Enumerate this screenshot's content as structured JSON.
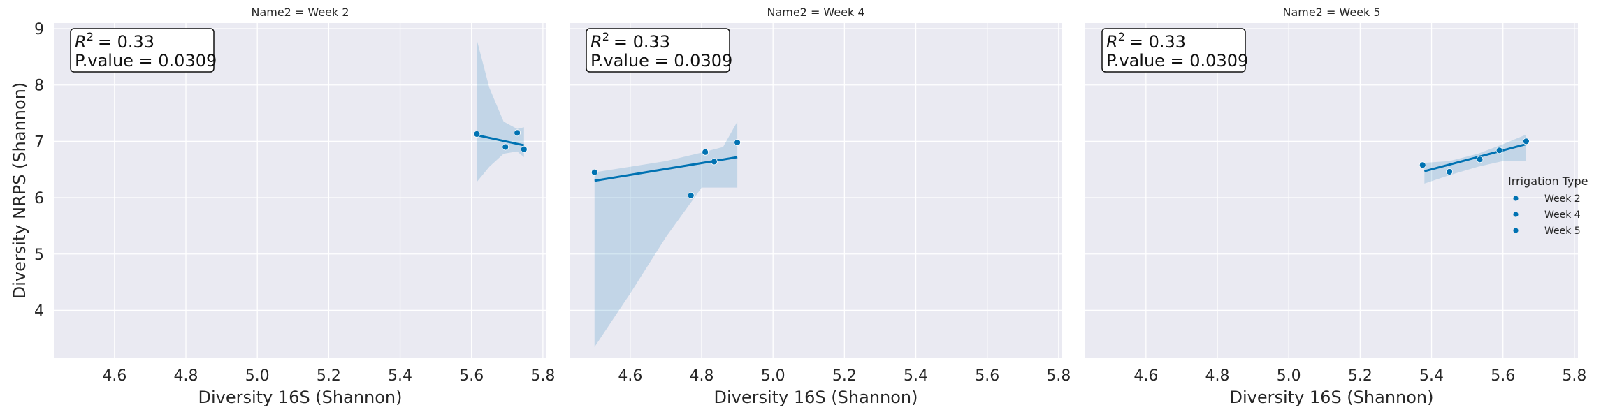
{
  "chart_data": [
    {
      "type": "scatter",
      "title": "Name2 = Week 2",
      "xlabel": "Diversity 16S (Shannon)",
      "ylabel": "Diversity NRPS (Shannon)",
      "xlim": [
        4.43,
        5.81
      ],
      "ylim": [
        3.15,
        9.1
      ],
      "xticks": [
        "4.6",
        "4.8",
        "5.0",
        "5.2",
        "5.4",
        "5.6",
        "5.8"
      ],
      "yticks": [
        "4",
        "5",
        "6",
        "7",
        "8",
        "9"
      ],
      "annotation": {
        "r2_value": "= 0.33",
        "p_value": "P.value = 0.0309"
      },
      "points": [
        {
          "x": 5.615,
          "y": 7.13
        },
        {
          "x": 5.695,
          "y": 6.9
        },
        {
          "x": 5.728,
          "y": 7.15
        },
        {
          "x": 5.747,
          "y": 6.86
        }
      ],
      "fit": {
        "x": [
          5.615,
          5.747
        ],
        "y": [
          7.11,
          6.93
        ]
      },
      "ci": {
        "x": [
          5.615,
          5.65,
          5.69,
          5.728,
          5.747
        ],
        "upper": [
          8.8,
          7.95,
          7.35,
          7.22,
          7.25
        ],
        "lower": [
          6.28,
          6.55,
          6.78,
          6.82,
          6.72
        ]
      },
      "grid": true
    },
    {
      "type": "scatter",
      "title": "Name2 = Week 4",
      "xlabel": "Diversity 16S (Shannon)",
      "ylabel": "",
      "xlim": [
        4.43,
        5.81
      ],
      "ylim": [
        3.15,
        9.1
      ],
      "xticks": [
        "4.6",
        "4.8",
        "5.0",
        "5.2",
        "5.4",
        "5.6",
        "5.8"
      ],
      "yticks": [
        "4",
        "5",
        "6",
        "7",
        "8",
        "9"
      ],
      "annotation": {
        "r2_value": "= 0.33",
        "p_value": "P.value = 0.0309"
      },
      "points": [
        {
          "x": 4.5,
          "y": 6.45
        },
        {
          "x": 4.77,
          "y": 6.04
        },
        {
          "x": 4.81,
          "y": 6.81
        },
        {
          "x": 4.835,
          "y": 6.64
        },
        {
          "x": 4.9,
          "y": 6.98
        }
      ],
      "fit": {
        "x": [
          4.5,
          4.9
        ],
        "y": [
          6.3,
          6.72
        ]
      },
      "ci": {
        "x": [
          4.5,
          4.6,
          4.7,
          4.8,
          4.86,
          4.9
        ],
        "upper": [
          6.45,
          6.55,
          6.65,
          6.8,
          6.9,
          7.35
        ],
        "lower": [
          3.35,
          4.3,
          5.3,
          6.18,
          6.18,
          6.18
        ]
      },
      "grid": true
    },
    {
      "type": "scatter",
      "title": "Name2 = Week 5",
      "xlabel": "Diversity 16S (Shannon)",
      "ylabel": "",
      "xlim": [
        4.43,
        5.81
      ],
      "ylim": [
        3.15,
        9.1
      ],
      "xticks": [
        "4.6",
        "4.8",
        "5.0",
        "5.2",
        "5.4",
        "5.6",
        "5.8"
      ],
      "yticks": [
        "4",
        "5",
        "6",
        "7",
        "8",
        "9"
      ],
      "annotation": {
        "r2_value": "= 0.33",
        "p_value": "P.value = 0.0309"
      },
      "points": [
        {
          "x": 5.375,
          "y": 6.58
        },
        {
          "x": 5.45,
          "y": 6.46
        },
        {
          "x": 5.535,
          "y": 6.68
        },
        {
          "x": 5.59,
          "y": 6.84
        },
        {
          "x": 5.665,
          "y": 7.0
        }
      ],
      "fit": {
        "x": [
          5.38,
          5.665
        ],
        "y": [
          6.47,
          6.95
        ]
      },
      "ci": {
        "x": [
          5.38,
          5.45,
          5.53,
          5.6,
          5.665
        ],
        "upper": [
          6.62,
          6.65,
          6.78,
          6.95,
          7.12
        ],
        "lower": [
          6.25,
          6.4,
          6.55,
          6.65,
          6.65
        ]
      },
      "grid": true,
      "legend": {
        "title": "Irrigation Type",
        "placement": "right",
        "entries": [
          "Week 2",
          "Week 4",
          "Week 5"
        ]
      }
    }
  ],
  "colors": {
    "panel_bg": "#eaeaf2",
    "grid": "#ffffff",
    "series": "#0072b2",
    "ci_fill": "#0072b2"
  }
}
